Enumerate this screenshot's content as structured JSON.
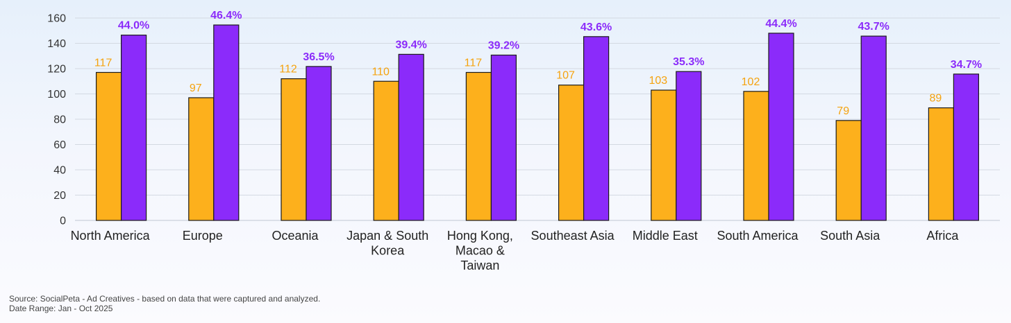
{
  "chart_data": {
    "type": "bar",
    "categories": [
      "North America",
      "Europe",
      "Oceania",
      "Japan & South Korea",
      "Hong Kong, Macao & Taiwan",
      "Southeast Asia",
      "Middle East",
      "South America",
      "South Asia",
      "Africa"
    ],
    "category_label_lines": [
      [
        "North America"
      ],
      [
        "Europe"
      ],
      [
        "Oceania"
      ],
      [
        "Japan & South",
        "Korea"
      ],
      [
        "Hong Kong,",
        "Macao &",
        "Taiwan"
      ],
      [
        "Southeast Asia"
      ],
      [
        "Middle East"
      ],
      [
        "South America"
      ],
      [
        "South Asia"
      ],
      [
        "Africa"
      ]
    ],
    "series": [
      {
        "color": "#FDB01C",
        "values": [
          117,
          97,
          112,
          110,
          117,
          107,
          103,
          102,
          79,
          89
        ],
        "data_labels": [
          "117",
          "97",
          "112",
          "110",
          "117",
          "107",
          "103",
          "102",
          "79",
          "89"
        ]
      },
      {
        "color": "#8B2BFA",
        "values": [
          146.5,
          154.5,
          121.7,
          131.3,
          130.7,
          145.3,
          117.7,
          148,
          145.7,
          115.7
        ],
        "data_labels": [
          "44.0%",
          "46.4%",
          "36.5%",
          "39.4%",
          "39.2%",
          "43.6%",
          "35.3%",
          "44.4%",
          "43.7%",
          "34.7%"
        ]
      }
    ],
    "ylim": [
      0,
      160
    ],
    "yticks": [
      0,
      20,
      40,
      60,
      80,
      100,
      120,
      140,
      160
    ],
    "grid": true,
    "legend": "none",
    "title": "",
    "xlabel": "",
    "ylabel": "",
    "label_colors": {
      "series1": "#F5A30F",
      "series2": "#8B2BFA"
    }
  },
  "footer": {
    "source": "Source: SocialPeta - Ad Creatives - based on data that were captured and analyzed.",
    "date_range": "Date Range: Jan - Oct 2025"
  }
}
